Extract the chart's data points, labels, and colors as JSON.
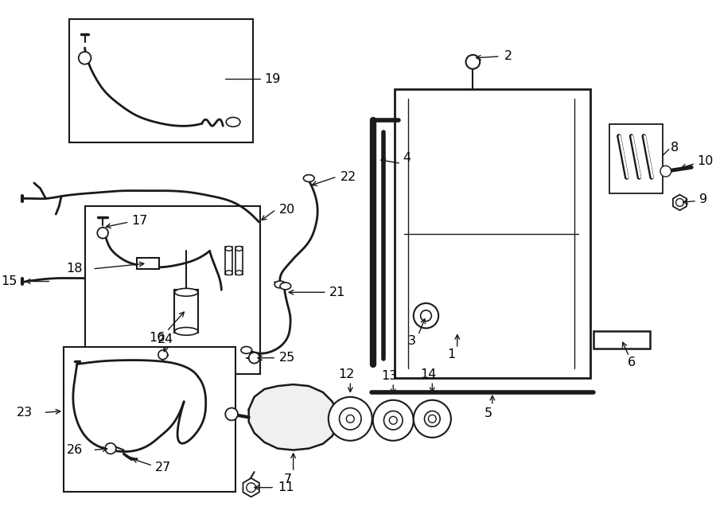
{
  "bg_color": "#ffffff",
  "line_color": "#1a1a1a",
  "label_color": "#000000",
  "label_fontsize": 11.5,
  "fig_width": 9.0,
  "fig_height": 6.61
}
